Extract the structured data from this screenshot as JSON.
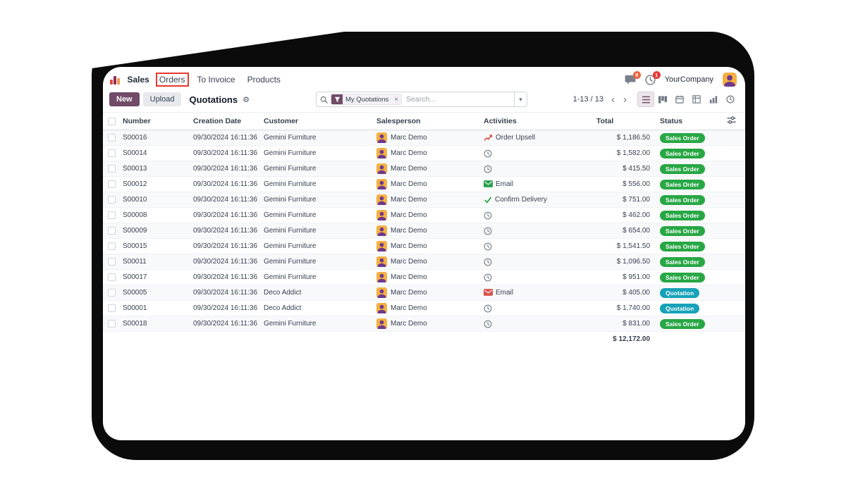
{
  "menubar": {
    "app_name": "Sales",
    "menu_items": [
      {
        "label": "Orders",
        "highlighted": true
      },
      {
        "label": "To Invoice",
        "highlighted": false
      },
      {
        "label": "Products",
        "highlighted": false
      }
    ],
    "systray": {
      "messages_badge": "9",
      "activities_badge": "1",
      "company": "YourCompany"
    }
  },
  "control_panel": {
    "buttons": {
      "new": "New",
      "upload": "Upload"
    },
    "title": "Quotations",
    "search": {
      "facet": "My Quotations",
      "placeholder": "Search..."
    },
    "pager": {
      "text": "1-13 / 13"
    },
    "view_switcher": [
      "list",
      "kanban",
      "calendar",
      "pivot",
      "graph",
      "activity"
    ]
  },
  "icons": {
    "gear": "⚙",
    "caret": "▾",
    "close": "×",
    "prev": "‹",
    "next": "›"
  },
  "table": {
    "columns": [
      "Number",
      "Creation Date",
      "Customer",
      "Salesperson",
      "Activities",
      "Total",
      "Status"
    ],
    "rows": [
      {
        "number": "S00016",
        "creation_date": "09/30/2024 16:11:36",
        "customer": "Gemini Furniture",
        "salesperson": "Marc Demo",
        "activity_type": "upsell",
        "activity_label": "Order Upsell",
        "total": "$ 1,186.50",
        "status": "Sales Order"
      },
      {
        "number": "S00014",
        "creation_date": "09/30/2024 16:11:36",
        "customer": "Gemini Furniture",
        "salesperson": "Marc Demo",
        "activity_type": "clock",
        "activity_label": "",
        "total": "$ 1,582.00",
        "status": "Sales Order"
      },
      {
        "number": "S00013",
        "creation_date": "09/30/2024 16:11:36",
        "customer": "Gemini Furniture",
        "salesperson": "Marc Demo",
        "activity_type": "clock",
        "activity_label": "",
        "total": "$ 415.50",
        "status": "Sales Order"
      },
      {
        "number": "S00012",
        "creation_date": "09/30/2024 16:11:36",
        "customer": "Gemini Furniture",
        "salesperson": "Marc Demo",
        "activity_type": "email",
        "activity_label": "Email",
        "total": "$ 556.00",
        "status": "Sales Order"
      },
      {
        "number": "S00010",
        "creation_date": "09/30/2024 16:11:36",
        "customer": "Gemini Furniture",
        "salesperson": "Marc Demo",
        "activity_type": "check",
        "activity_label": "Confirm Delivery",
        "total": "$ 751.00",
        "status": "Sales Order"
      },
      {
        "number": "S00008",
        "creation_date": "09/30/2024 16:11:36",
        "customer": "Gemini Furniture",
        "salesperson": "Marc Demo",
        "activity_type": "clock",
        "activity_label": "",
        "total": "$ 462.00",
        "status": "Sales Order"
      },
      {
        "number": "S00009",
        "creation_date": "09/30/2024 16:11:36",
        "customer": "Gemini Furniture",
        "salesperson": "Marc Demo",
        "activity_type": "clock",
        "activity_label": "",
        "total": "$ 654.00",
        "status": "Sales Order"
      },
      {
        "number": "S00015",
        "creation_date": "09/30/2024 16:11:36",
        "customer": "Gemini Furniture",
        "salesperson": "Marc Demo",
        "activity_type": "clock",
        "activity_label": "",
        "total": "$ 1,541.50",
        "status": "Sales Order"
      },
      {
        "number": "S00011",
        "creation_date": "09/30/2024 16:11:36",
        "customer": "Gemini Furniture",
        "salesperson": "Marc Demo",
        "activity_type": "clock",
        "activity_label": "",
        "total": "$ 1,096.50",
        "status": "Sales Order"
      },
      {
        "number": "S00017",
        "creation_date": "09/30/2024 16:11:36",
        "customer": "Gemini Furniture",
        "salesperson": "Marc Demo",
        "activity_type": "clock",
        "activity_label": "",
        "total": "$ 951.00",
        "status": "Sales Order"
      },
      {
        "number": "S00005",
        "creation_date": "09/30/2024 16:11:36",
        "customer": "Deco Addict",
        "salesperson": "Marc Demo",
        "activity_type": "email-late",
        "activity_label": "Email",
        "total": "$ 405.00",
        "status": "Quotation"
      },
      {
        "number": "S00001",
        "creation_date": "09/30/2024 16:11:36",
        "customer": "Deco Addict",
        "salesperson": "Marc Demo",
        "activity_type": "clock",
        "activity_label": "",
        "total": "$ 1,740.00",
        "status": "Quotation"
      },
      {
        "number": "S00018",
        "creation_date": "09/30/2024 16:11:36",
        "customer": "Gemini Furniture",
        "salesperson": "Marc Demo",
        "activity_type": "clock",
        "activity_label": "",
        "total": "$ 831.00",
        "status": "Sales Order"
      }
    ],
    "footer": {
      "total": "$ 12,172.00"
    }
  },
  "colors": {
    "primary": "#714B67",
    "sales_order_badge": "#28a745",
    "quotation_badge": "#17a2b8",
    "annotation_box": "#e8382e"
  }
}
